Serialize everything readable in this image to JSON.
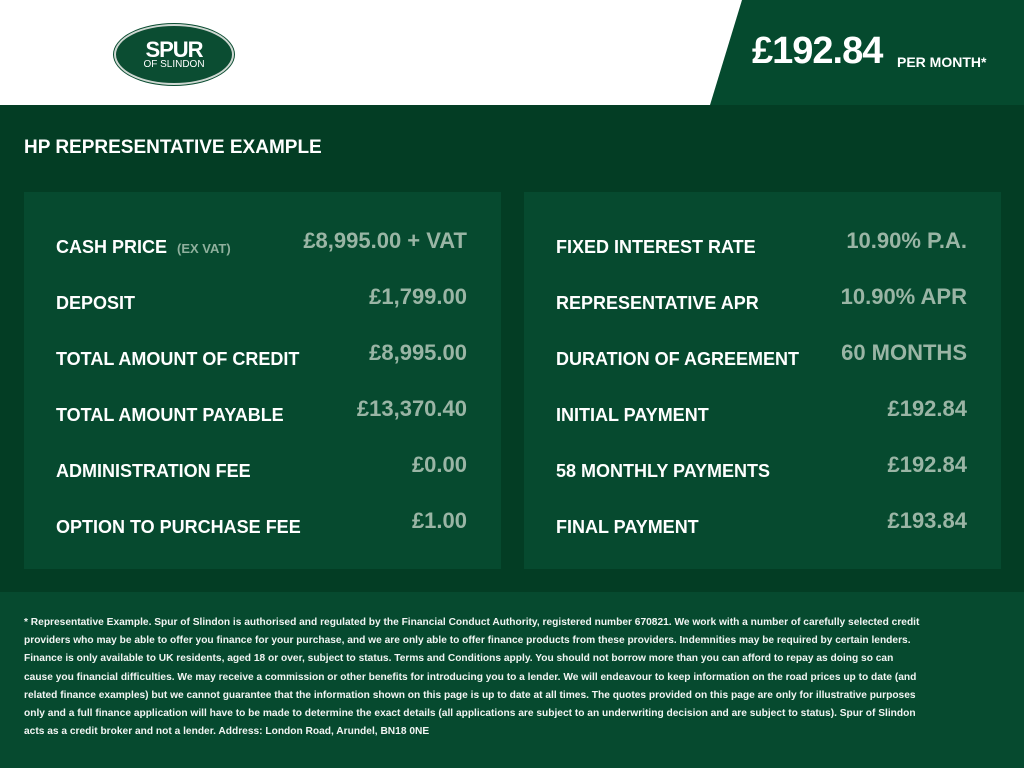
{
  "header": {
    "logo_text": "SPUR OF SLINDON",
    "monthly_price": "£192.84",
    "per_month_label": "PER MONTH*"
  },
  "title": "HP REPRESENTATIVE EXAMPLE",
  "left_rows": [
    {
      "label": "CASH PRICE",
      "sub": "(EX VAT)",
      "value": "£8,995.00 + VAT"
    },
    {
      "label": "DEPOSIT",
      "value": "£1,799.00"
    },
    {
      "label": "TOTAL AMOUNT OF CREDIT",
      "value": "£8,995.00"
    },
    {
      "label": "TOTAL AMOUNT PAYABLE",
      "value": "£13,370.40"
    },
    {
      "label": "ADMINISTRATION FEE",
      "value": "£0.00"
    },
    {
      "label": "OPTION TO PURCHASE FEE",
      "value": "£1.00"
    }
  ],
  "right_rows": [
    {
      "label": "FIXED INTEREST RATE",
      "value": "10.90% P.A."
    },
    {
      "label": "REPRESENTATIVE APR",
      "value": "10.90% APR"
    },
    {
      "label": "DURATION OF AGREEMENT",
      "value": "60 MONTHS"
    },
    {
      "label": "INITIAL PAYMENT",
      "value": "£192.84"
    },
    {
      "label": "58 MONTHLY PAYMENTS",
      "value": "£192.84"
    },
    {
      "label": "FINAL PAYMENT",
      "value": "£193.84"
    }
  ],
  "disclaimer": "* Representative Example. Spur of Slindon is authorised and regulated by the Financial Conduct Authority, registered number 670821. We work with a number of carefully selected credit providers who may be able to offer you finance for your purchase, and we are only able to offer finance products from these providers. Indemnities may be required by certain lenders. Finance is only available to UK residents, aged 18 or over, subject to status. Terms and Conditions apply. You should not borrow more than you can afford to repay as doing so can cause you financial difficulties. We may receive a commission or other benefits for introducing you to a lender. We will endeavour to keep information on the road prices up to date (and related finance examples) but we cannot guarantee that the information shown on this page is up to date at all times. The quotes provided on this page are only for illustrative purposes only and a full finance application will have to be made to determine the exact details (all applications are subject to an underwriting decision and are subject to status). Spur of Slindon acts as a credit broker and not a lender. Address: London Road, Arundel, BN18 0NE"
}
